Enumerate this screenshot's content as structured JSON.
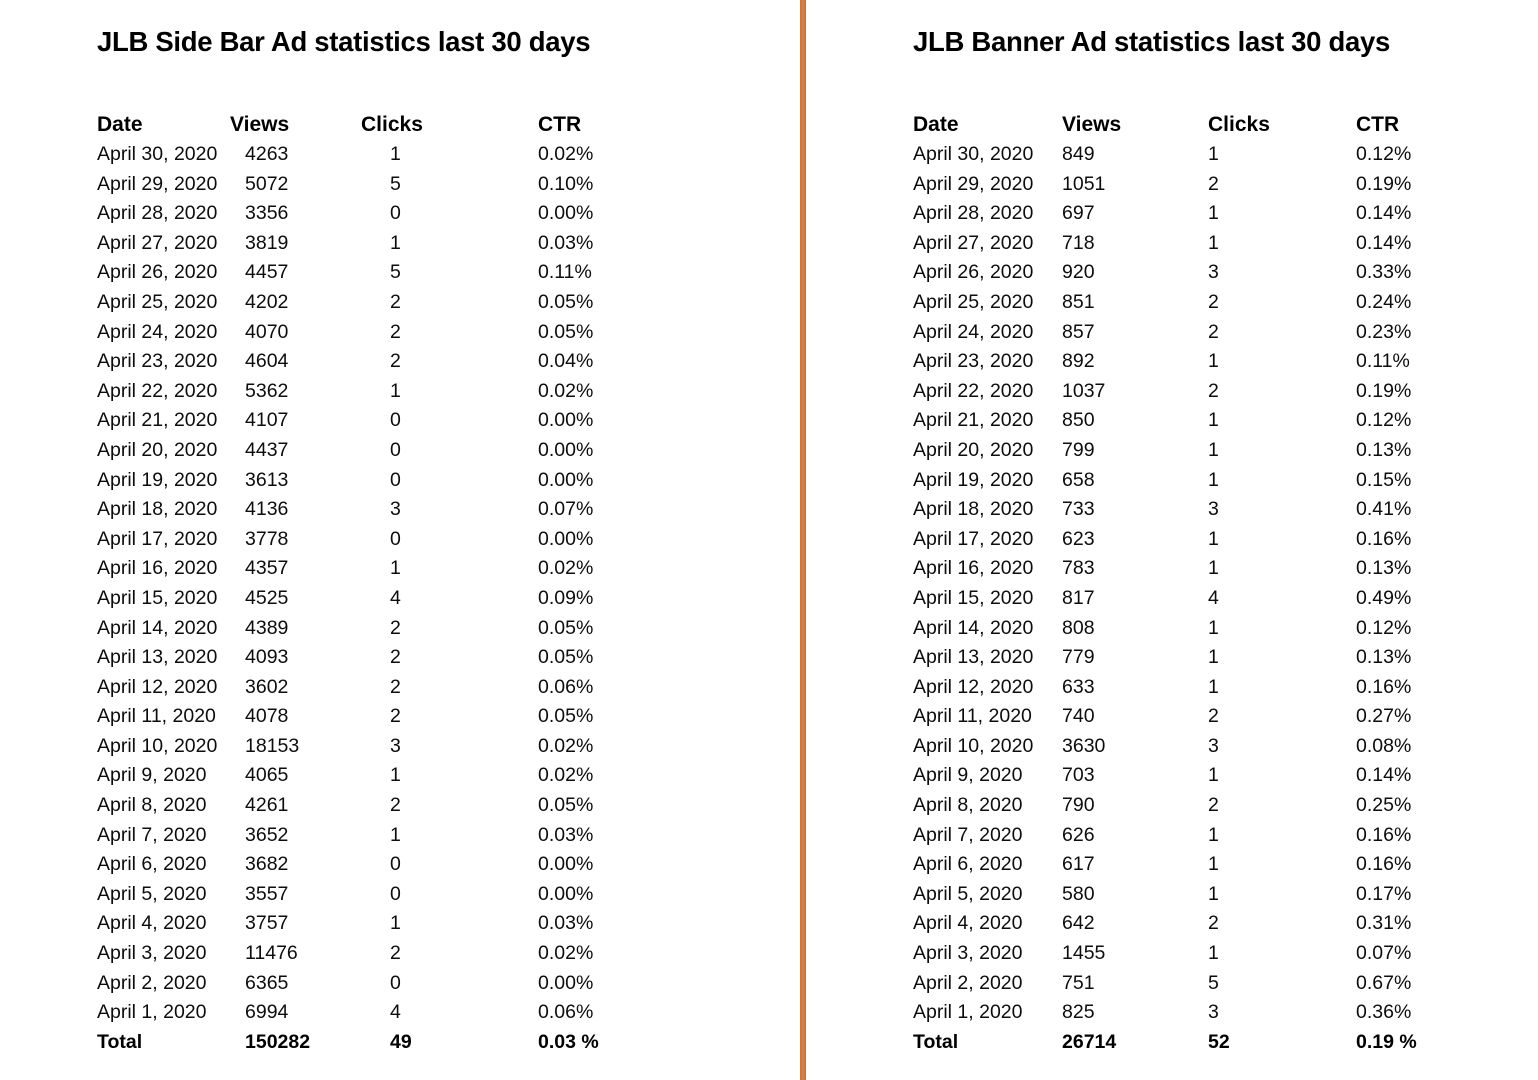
{
  "page": {
    "background": "#ffffff",
    "divider_color": "#d9813f"
  },
  "tables": [
    {
      "title": "JLB Side Bar Ad statistics last 30 days",
      "columns": [
        "Date",
        "Views",
        "Clicks",
        "CTR"
      ],
      "rows": [
        [
          "April 30, 2020",
          "4263",
          "1",
          "0.02%"
        ],
        [
          "April 29, 2020",
          "5072",
          "5",
          "0.10%"
        ],
        [
          "April 28, 2020",
          "3356",
          "0",
          "0.00%"
        ],
        [
          "April 27, 2020",
          "3819",
          "1",
          "0.03%"
        ],
        [
          "April 26, 2020",
          "4457",
          "5",
          "0.11%"
        ],
        [
          "April 25, 2020",
          "4202",
          "2",
          "0.05%"
        ],
        [
          "April 24, 2020",
          "4070",
          "2",
          "0.05%"
        ],
        [
          "April 23, 2020",
          "4604",
          "2",
          "0.04%"
        ],
        [
          "April 22, 2020",
          "5362",
          "1",
          "0.02%"
        ],
        [
          "April 21, 2020",
          "4107",
          "0",
          "0.00%"
        ],
        [
          "April 20, 2020",
          "4437",
          "0",
          "0.00%"
        ],
        [
          "April 19, 2020",
          "3613",
          "0",
          "0.00%"
        ],
        [
          "April 18, 2020",
          "4136",
          "3",
          "0.07%"
        ],
        [
          "April 17, 2020",
          "3778",
          "0",
          "0.00%"
        ],
        [
          "April 16, 2020",
          "4357",
          "1",
          "0.02%"
        ],
        [
          "April 15, 2020",
          "4525",
          "4",
          "0.09%"
        ],
        [
          "April 14, 2020",
          "4389",
          "2",
          "0.05%"
        ],
        [
          "April 13, 2020",
          "4093",
          "2",
          "0.05%"
        ],
        [
          "April 12, 2020",
          "3602",
          "2",
          "0.06%"
        ],
        [
          "April 11, 2020",
          "4078",
          "2",
          "0.05%"
        ],
        [
          "April 10, 2020",
          "18153",
          "3",
          "0.02%"
        ],
        [
          "April 9, 2020",
          "4065",
          "1",
          "0.02%"
        ],
        [
          "April 8, 2020",
          "4261",
          "2",
          "0.05%"
        ],
        [
          "April 7, 2020",
          "3652",
          "1",
          "0.03%"
        ],
        [
          "April 6, 2020",
          "3682",
          "0",
          "0.00%"
        ],
        [
          "April 5, 2020",
          "3557",
          "0",
          "0.00%"
        ],
        [
          "April 4, 2020",
          "3757",
          "1",
          "0.03%"
        ],
        [
          "April 3, 2020",
          "11476",
          "2",
          "0.02%"
        ],
        [
          "April 2, 2020",
          "6365",
          "0",
          "0.00%"
        ],
        [
          "April 1, 2020",
          "6994",
          "4",
          "0.06%"
        ]
      ],
      "total": [
        "Total",
        "150282",
        "49",
        "0.03 %"
      ]
    },
    {
      "title": "JLB Banner Ad statistics last 30 days",
      "columns": [
        "Date",
        "Views",
        "Clicks",
        "CTR"
      ],
      "rows": [
        [
          "April 30, 2020",
          "849",
          "1",
          "0.12%"
        ],
        [
          "April 29, 2020",
          "1051",
          "2",
          "0.19%"
        ],
        [
          "April 28, 2020",
          "697",
          "1",
          "0.14%"
        ],
        [
          "April 27, 2020",
          "718",
          "1",
          "0.14%"
        ],
        [
          "April 26, 2020",
          "920",
          "3",
          "0.33%"
        ],
        [
          "April 25, 2020",
          "851",
          "2",
          "0.24%"
        ],
        [
          "April 24, 2020",
          "857",
          "2",
          "0.23%"
        ],
        [
          "April 23, 2020",
          "892",
          "1",
          "0.11%"
        ],
        [
          "April 22, 2020",
          "1037",
          "2",
          "0.19%"
        ],
        [
          "April 21, 2020",
          "850",
          "1",
          "0.12%"
        ],
        [
          "April 20, 2020",
          "799",
          "1",
          "0.13%"
        ],
        [
          "April 19, 2020",
          "658",
          "1",
          "0.15%"
        ],
        [
          "April 18, 2020",
          "733",
          "3",
          "0.41%"
        ],
        [
          "April 17, 2020",
          "623",
          "1",
          "0.16%"
        ],
        [
          "April 16, 2020",
          "783",
          "1",
          "0.13%"
        ],
        [
          "April 15, 2020",
          "817",
          "4",
          "0.49%"
        ],
        [
          "April 14, 2020",
          "808",
          "1",
          "0.12%"
        ],
        [
          "April 13, 2020",
          "779",
          "1",
          "0.13%"
        ],
        [
          "April 12, 2020",
          "633",
          "1",
          "0.16%"
        ],
        [
          "April 11, 2020",
          "740",
          "2",
          "0.27%"
        ],
        [
          "April 10, 2020",
          "3630",
          "3",
          "0.08%"
        ],
        [
          "April 9, 2020",
          "703",
          "1",
          "0.14%"
        ],
        [
          "April 8, 2020",
          "790",
          "2",
          "0.25%"
        ],
        [
          "April 7, 2020",
          "626",
          "1",
          "0.16%"
        ],
        [
          "April 6, 2020",
          "617",
          "1",
          "0.16%"
        ],
        [
          "April 5, 2020",
          "580",
          "1",
          "0.17%"
        ],
        [
          "April 4, 2020",
          "642",
          "2",
          "0.31%"
        ],
        [
          "April 3, 2020",
          "1455",
          "1",
          "0.07%"
        ],
        [
          "April 2, 2020",
          "751",
          "5",
          "0.67%"
        ],
        [
          "April 1, 2020",
          "825",
          "3",
          "0.36%"
        ]
      ],
      "total": [
        "Total",
        "26714",
        "52",
        "0.19 %"
      ]
    }
  ]
}
